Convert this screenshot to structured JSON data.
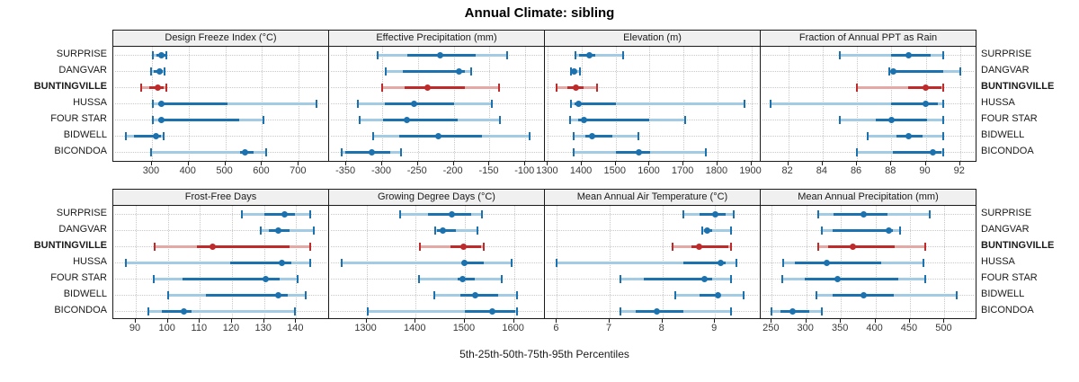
{
  "title": "Annual Climate: sibling",
  "caption": "5th-25th-50th-75th-95th Percentiles",
  "sites": [
    "SURPRISE",
    "DANGVAR",
    "BUNTINGVILLE",
    "HUSSA",
    "FOUR STAR",
    "BIDWELL",
    "BICONDOA"
  ],
  "highlight_site": "BUNTINGVILLE",
  "colors": {
    "series_dark": "#1b72ae",
    "series_light": "#a3cbe4",
    "highlight_dark": "#bf2b2b",
    "highlight_light": "#e4a9a5",
    "grid": "#c8c8c8",
    "header_bg": "#f0f0f0",
    "border": "#1a1a1a"
  },
  "chart_data": {
    "type": "dot-interval percentile trellis",
    "percentiles": [
      "5th",
      "25th",
      "50th",
      "75th",
      "95th"
    ],
    "panel_grid": [
      2,
      4
    ],
    "legend_note": "dot = 50th percentile, dark band = 25th-75th, light band = 5th-25th and 75th-95th, caps at 5th and 95th",
    "panels": [
      {
        "title": "Design Freeze Index (°C)",
        "row": 0,
        "col": 0,
        "xlim": [
          195,
          780
        ],
        "ticks": [
          300,
          400,
          500,
          600,
          700
        ],
        "series": [
          {
            "site": "SURPRISE",
            "p": [
              303,
              312,
              327,
              336,
              340
            ]
          },
          {
            "site": "DANGVAR",
            "p": [
              297,
              306,
              322,
              330,
              334
            ]
          },
          {
            "site": "BUNTINGVILLE",
            "p": [
              272,
              293,
              315,
              333,
              340
            ]
          },
          {
            "site": "HUSSA",
            "p": [
              302,
              317,
              327,
              507,
              747
            ]
          },
          {
            "site": "FOUR STAR",
            "p": [
              303,
              318,
              325,
              537,
              604
            ]
          },
          {
            "site": "BIDWELL",
            "p": [
              230,
              252,
              311,
              325,
              333
            ]
          },
          {
            "site": "BICONDOA",
            "p": [
              298,
              539,
              553,
              578,
              612
            ]
          }
        ]
      },
      {
        "title": "Effective Precipitation (mm)",
        "row": 0,
        "col": 1,
        "xlim": [
          -374,
          -74
        ],
        "ticks": [
          -350,
          -300,
          -250,
          -200,
          -150,
          -100
        ],
        "series": [
          {
            "site": "SURPRISE",
            "p": [
              -306,
              -265,
              -219,
              -169,
              -125
            ]
          },
          {
            "site": "DANGVAR",
            "p": [
              -295,
              -271,
              -192,
              -184,
              -176
            ]
          },
          {
            "site": "BUNTINGVILLE",
            "p": [
              -300,
              -268,
              -237,
              -184,
              -137
            ]
          },
          {
            "site": "HUSSA",
            "p": [
              -334,
              -296,
              -255,
              -199,
              -147
            ]
          },
          {
            "site": "FOUR STAR",
            "p": [
              -331,
              -299,
              -266,
              -195,
              -135
            ]
          },
          {
            "site": "BIDWELL",
            "p": [
              -313,
              -276,
              -221,
              -161,
              -94
            ]
          },
          {
            "site": "BICONDOA",
            "p": [
              -356,
              -351,
              -315,
              -289,
              -273
            ]
          }
        ]
      },
      {
        "title": "Elevation (m)",
        "row": 0,
        "col": 2,
        "xlim": [
          1291,
          1925
        ],
        "ticks": [
          1300,
          1400,
          1500,
          1600,
          1700,
          1800,
          1900
        ],
        "series": [
          {
            "site": "SURPRISE",
            "p": [
              1382,
              1392,
              1423,
              1440,
              1522
            ]
          },
          {
            "site": "DANGVAR",
            "p": [
              1367,
              1370,
              1377,
              1383,
              1395
            ]
          },
          {
            "site": "BUNTINGVILLE",
            "p": [
              1326,
              1357,
              1382,
              1406,
              1445
            ]
          },
          {
            "site": "HUSSA",
            "p": [
              1369,
              1378,
              1391,
              1500,
              1879
            ]
          },
          {
            "site": "FOUR STAR",
            "p": [
              1364,
              1390,
              1406,
              1600,
              1705
            ]
          },
          {
            "site": "BIDWELL",
            "p": [
              1375,
              1410,
              1430,
              1489,
              1568
            ]
          },
          {
            "site": "BICONDOA",
            "p": [
              1377,
              1500,
              1568,
              1601,
              1766
            ]
          }
        ]
      },
      {
        "title": "Fraction of Annual PPT as Rain",
        "row": 0,
        "col": 3,
        "xlim": [
          80.4,
          92.9
        ],
        "ticks": [
          82,
          84,
          86,
          88,
          90,
          92
        ],
        "series": [
          {
            "site": "SURPRISE",
            "p": [
              85,
              88,
              89,
              90.3,
              91
            ]
          },
          {
            "site": "DANGVAR",
            "p": [
              87.9,
              88,
              88.1,
              91,
              92
            ]
          },
          {
            "site": "BUNTINGVILLE",
            "p": [
              86,
              89,
              90,
              90.9,
              91
            ]
          },
          {
            "site": "HUSSA",
            "p": [
              81,
              88,
              90,
              90.7,
              91
            ]
          },
          {
            "site": "FOUR STAR",
            "p": [
              85,
              87.1,
              88,
              90.1,
              91
            ]
          },
          {
            "site": "BIDWELL",
            "p": [
              86.6,
              88.3,
              89,
              89.8,
              91
            ]
          },
          {
            "site": "BICONDOA",
            "p": [
              86,
              88.1,
              90.4,
              90.9,
              91
            ]
          }
        ]
      },
      {
        "title": "Frost-Free Days",
        "row": 1,
        "col": 0,
        "xlim": [
          83,
          150
        ],
        "ticks": [
          90,
          100,
          110,
          120,
          130,
          140
        ],
        "series": [
          {
            "site": "SURPRISE",
            "p": [
              123,
              130,
              136.5,
              139.5,
              144.5
            ]
          },
          {
            "site": "DANGVAR",
            "p": [
              129,
              131.5,
              134.5,
              138,
              145.5
            ]
          },
          {
            "site": "BUNTINGVILLE",
            "p": [
              96,
              109,
              114,
              138,
              144.5
            ]
          },
          {
            "site": "HUSSA",
            "p": [
              87,
              119.5,
              135.5,
              138.5,
              144.5
            ]
          },
          {
            "site": "FOUR STAR",
            "p": [
              95.5,
              104.5,
              130.5,
              135,
              140.5
            ]
          },
          {
            "site": "BIDWELL",
            "p": [
              100,
              112,
              134.5,
              137.5,
              143
            ]
          },
          {
            "site": "BICONDOA",
            "p": [
              94,
              98,
              105,
              107.5,
              139.5
            ]
          }
        ]
      },
      {
        "title": "Growing Degree Days (°C)",
        "row": 1,
        "col": 1,
        "xlim": [
          1224,
          1661
        ],
        "ticks": [
          1300,
          1400,
          1500,
          1600
        ],
        "series": [
          {
            "site": "SURPRISE",
            "p": [
              1368,
              1425,
              1473,
              1512,
              1534
            ]
          },
          {
            "site": "DANGVAR",
            "p": [
              1439,
              1443,
              1455,
              1482,
              1525
            ]
          },
          {
            "site": "BUNTINGVILLE",
            "p": [
              1408,
              1470,
              1497,
              1533,
              1539
            ]
          },
          {
            "site": "HUSSA",
            "p": [
              1250,
              1494,
              1500,
              1539,
              1596
            ]
          },
          {
            "site": "FOUR STAR",
            "p": [
              1407,
              1485,
              1496,
              1521,
              1575
            ]
          },
          {
            "site": "BIDWELL",
            "p": [
              1438,
              1491,
              1521,
              1567,
              1607
            ]
          },
          {
            "site": "BICONDOA",
            "p": [
              1303,
              1500,
              1555,
              1603,
              1607
            ]
          }
        ]
      },
      {
        "title": "Mean Annual Air Temperature (°C)",
        "row": 1,
        "col": 2,
        "xlim": [
          5.77,
          9.85
        ],
        "ticks": [
          6,
          7,
          8,
          9
        ],
        "series": [
          {
            "site": "SURPRISE",
            "p": [
              8.4,
              8.7,
              9.0,
              9.2,
              9.35
            ]
          },
          {
            "site": "DANGVAR",
            "p": [
              8.75,
              8.8,
              8.85,
              8.95,
              9.3
            ]
          },
          {
            "site": "BUNTINGVILLE",
            "p": [
              8.2,
              8.55,
              8.7,
              9.25,
              9.3
            ]
          },
          {
            "site": "HUSSA",
            "p": [
              6.0,
              8.4,
              9.1,
              9.2,
              9.4
            ]
          },
          {
            "site": "FOUR STAR",
            "p": [
              7.2,
              7.65,
              8.8,
              8.95,
              9.3
            ]
          },
          {
            "site": "BIDWELL",
            "p": [
              8.25,
              8.7,
              9.05,
              9.1,
              9.55
            ]
          },
          {
            "site": "BICONDOA",
            "p": [
              7.2,
              7.5,
              7.9,
              8.4,
              9.3
            ]
          }
        ]
      },
      {
        "title": "Mean Annual Precipitation (mm)",
        "row": 1,
        "col": 3,
        "xlim": [
          234,
          545
        ],
        "ticks": [
          250,
          300,
          350,
          400,
          450,
          500
        ],
        "series": [
          {
            "site": "SURPRISE",
            "p": [
              317,
              340,
              383,
              417,
              478
            ]
          },
          {
            "site": "DANGVAR",
            "p": [
              323,
              338,
              420,
              425,
              436
            ]
          },
          {
            "site": "BUNTINGVILLE",
            "p": [
              317,
              332,
              367,
              428,
              472
            ]
          },
          {
            "site": "HUSSA",
            "p": [
              267,
              284,
              330,
              409,
              470
            ]
          },
          {
            "site": "FOUR STAR",
            "p": [
              265,
              298,
              345,
              433,
              472
            ]
          },
          {
            "site": "BIDWELL",
            "p": [
              315,
              338,
              383,
              427,
              518
            ]
          },
          {
            "site": "BICONDOA",
            "p": [
              249,
              262,
              280,
              304,
              323
            ]
          }
        ]
      }
    ]
  }
}
